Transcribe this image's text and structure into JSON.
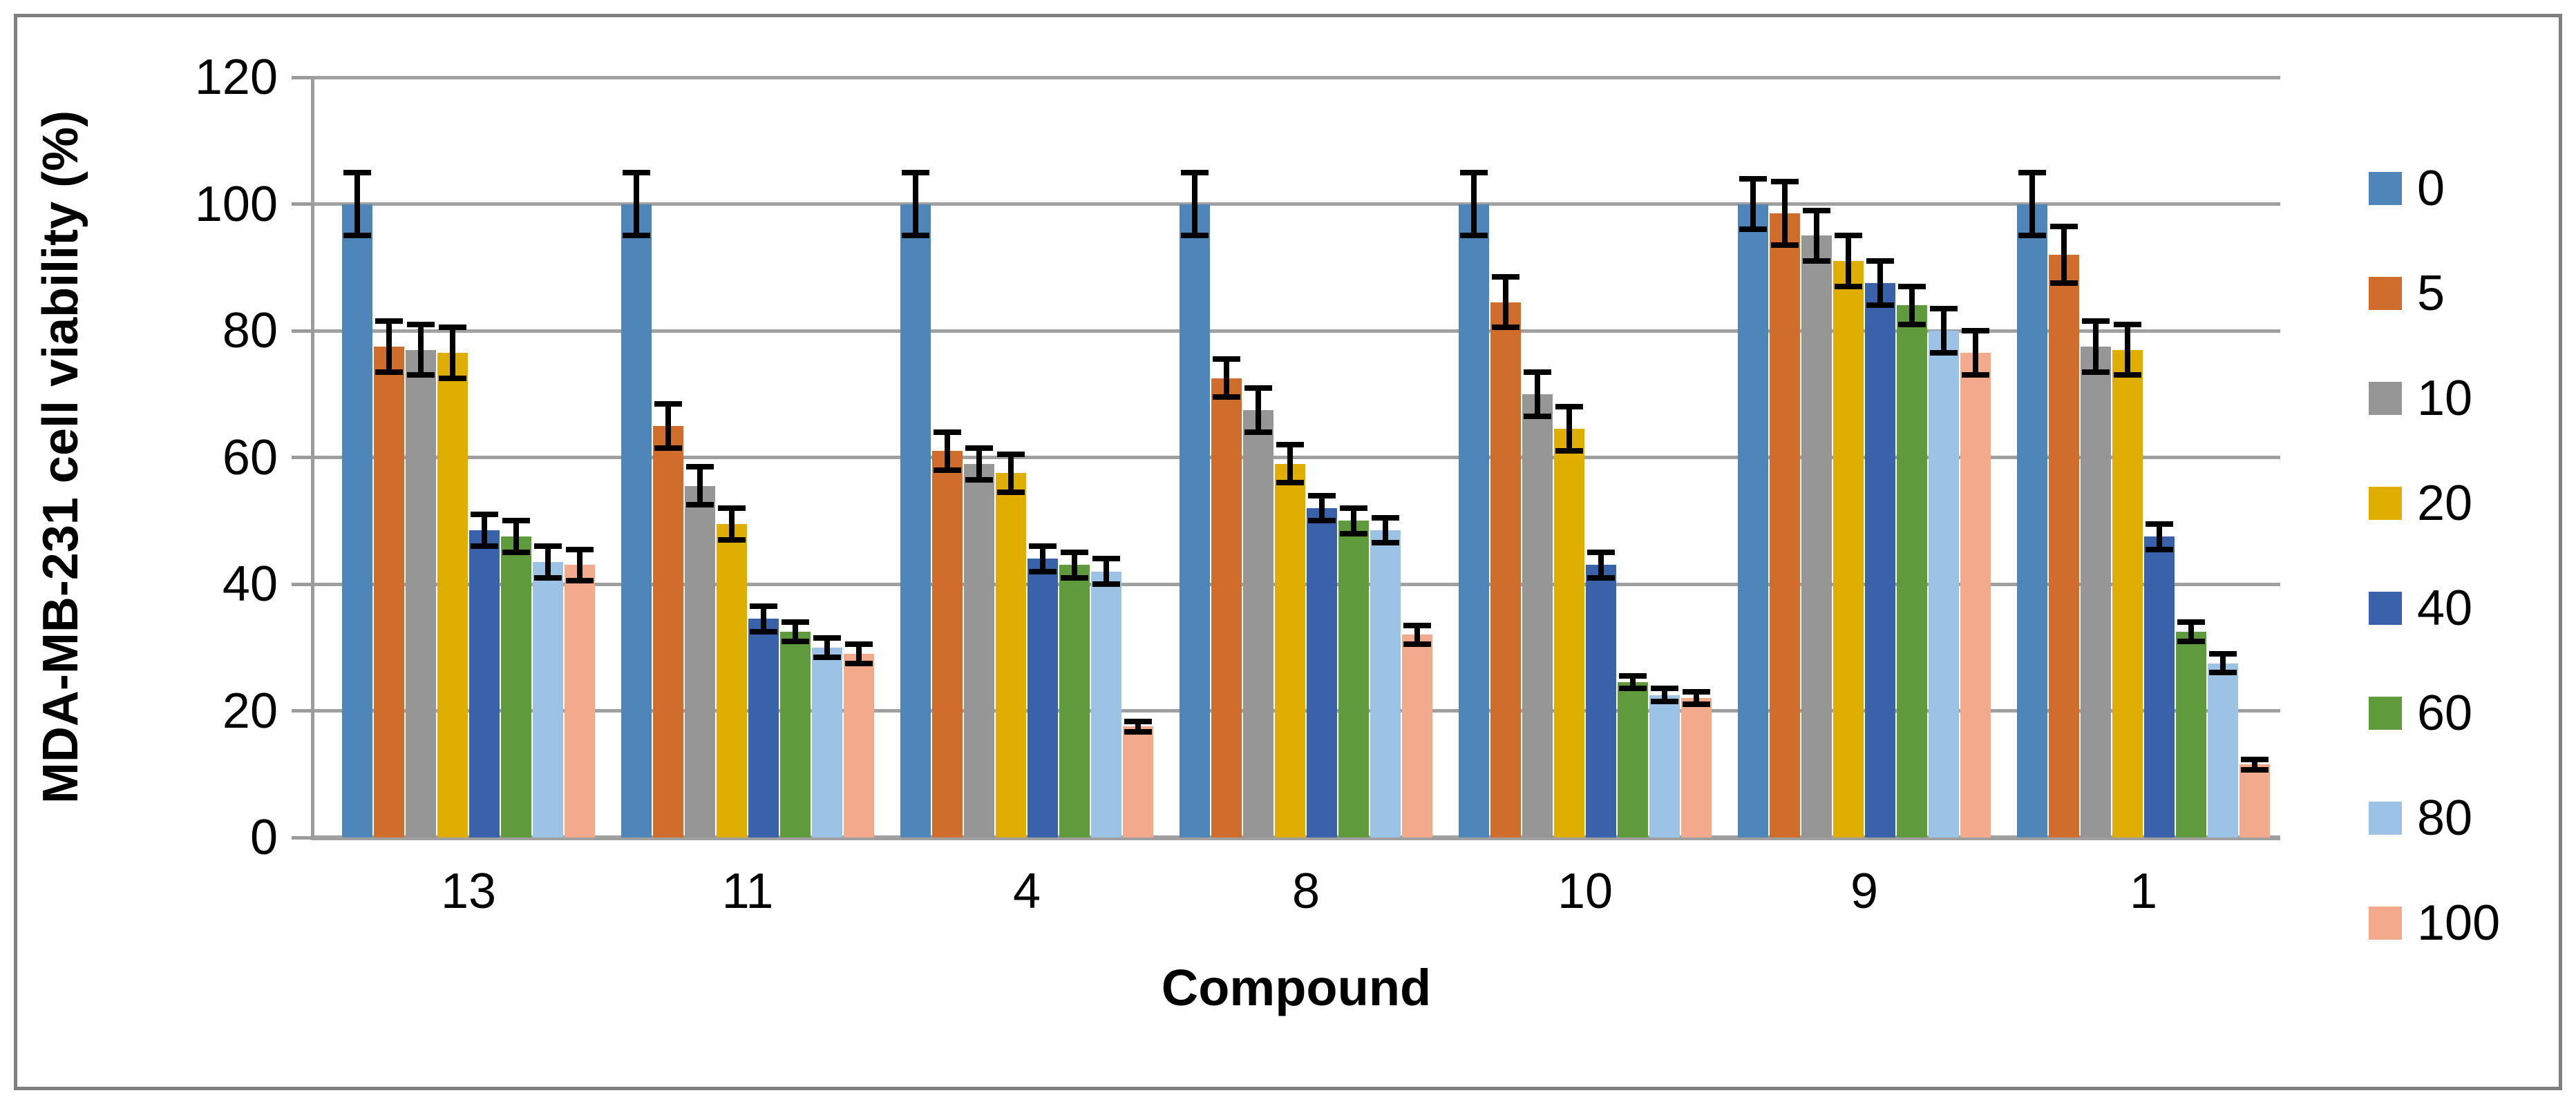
{
  "figure": {
    "background": "#ffffff",
    "border_color": "#7f7f7f",
    "gridline_color": "#a0a0a0",
    "axis_color": "#9c9c9c",
    "error_bar_color": "#000000"
  },
  "chart_data": {
    "type": "bar",
    "title": "",
    "xlabel": "Compound",
    "ylabel": "MDA-MB-231 cell viability (%)",
    "ylim": [
      0,
      120
    ],
    "yticks": [
      0,
      20,
      40,
      60,
      80,
      100,
      120
    ],
    "grid": true,
    "legend_position": "right",
    "error_bars": true,
    "categories": [
      "13",
      "11",
      "4",
      "8",
      "10",
      "9",
      "1"
    ],
    "series": [
      {
        "name": "0",
        "color": "#4f86ba",
        "values": [
          100,
          100,
          100,
          100,
          100,
          100,
          100
        ],
        "errors": [
          5,
          5,
          5,
          5,
          5,
          4,
          5
        ]
      },
      {
        "name": "5",
        "color": "#d16d2c",
        "values": [
          77.5,
          65,
          61,
          72.5,
          84.5,
          98.5,
          92
        ],
        "errors": [
          4,
          3.5,
          3,
          3,
          4,
          5,
          4.5
        ]
      },
      {
        "name": "10",
        "color": "#969696",
        "values": [
          77,
          55.5,
          59,
          67.5,
          70,
          95,
          77.5
        ],
        "errors": [
          4,
          3,
          2.5,
          3.5,
          3.5,
          4,
          4
        ]
      },
      {
        "name": "20",
        "color": "#e0ae00",
        "values": [
          76.5,
          49.5,
          57.5,
          59,
          64.5,
          91,
          77
        ],
        "errors": [
          4,
          2.5,
          3,
          3,
          3.5,
          4,
          4
        ]
      },
      {
        "name": "40",
        "color": "#3a62ab",
        "values": [
          48.5,
          34.5,
          44,
          52,
          43,
          87.5,
          47.5
        ],
        "errors": [
          2.5,
          2,
          2,
          2,
          2,
          3.5,
          2
        ]
      },
      {
        "name": "60",
        "color": "#5f9b3d",
        "values": [
          47.5,
          32.5,
          43,
          50,
          24.5,
          84,
          32.5
        ],
        "errors": [
          2.5,
          1.5,
          2,
          2,
          1,
          3,
          1.5
        ]
      },
      {
        "name": "80",
        "color": "#9cc2e6",
        "values": [
          43.5,
          30,
          42,
          48.5,
          22.5,
          80,
          27.5
        ],
        "errors": [
          2.5,
          1.5,
          2,
          2,
          1,
          3.5,
          1.5
        ]
      },
      {
        "name": "100",
        "color": "#f2a98c",
        "values": [
          43,
          29,
          17.5,
          32,
          22,
          76.5,
          11.5
        ],
        "errors": [
          2.5,
          1.5,
          0.8,
          1.5,
          1,
          3.5,
          0.8
        ]
      }
    ]
  }
}
